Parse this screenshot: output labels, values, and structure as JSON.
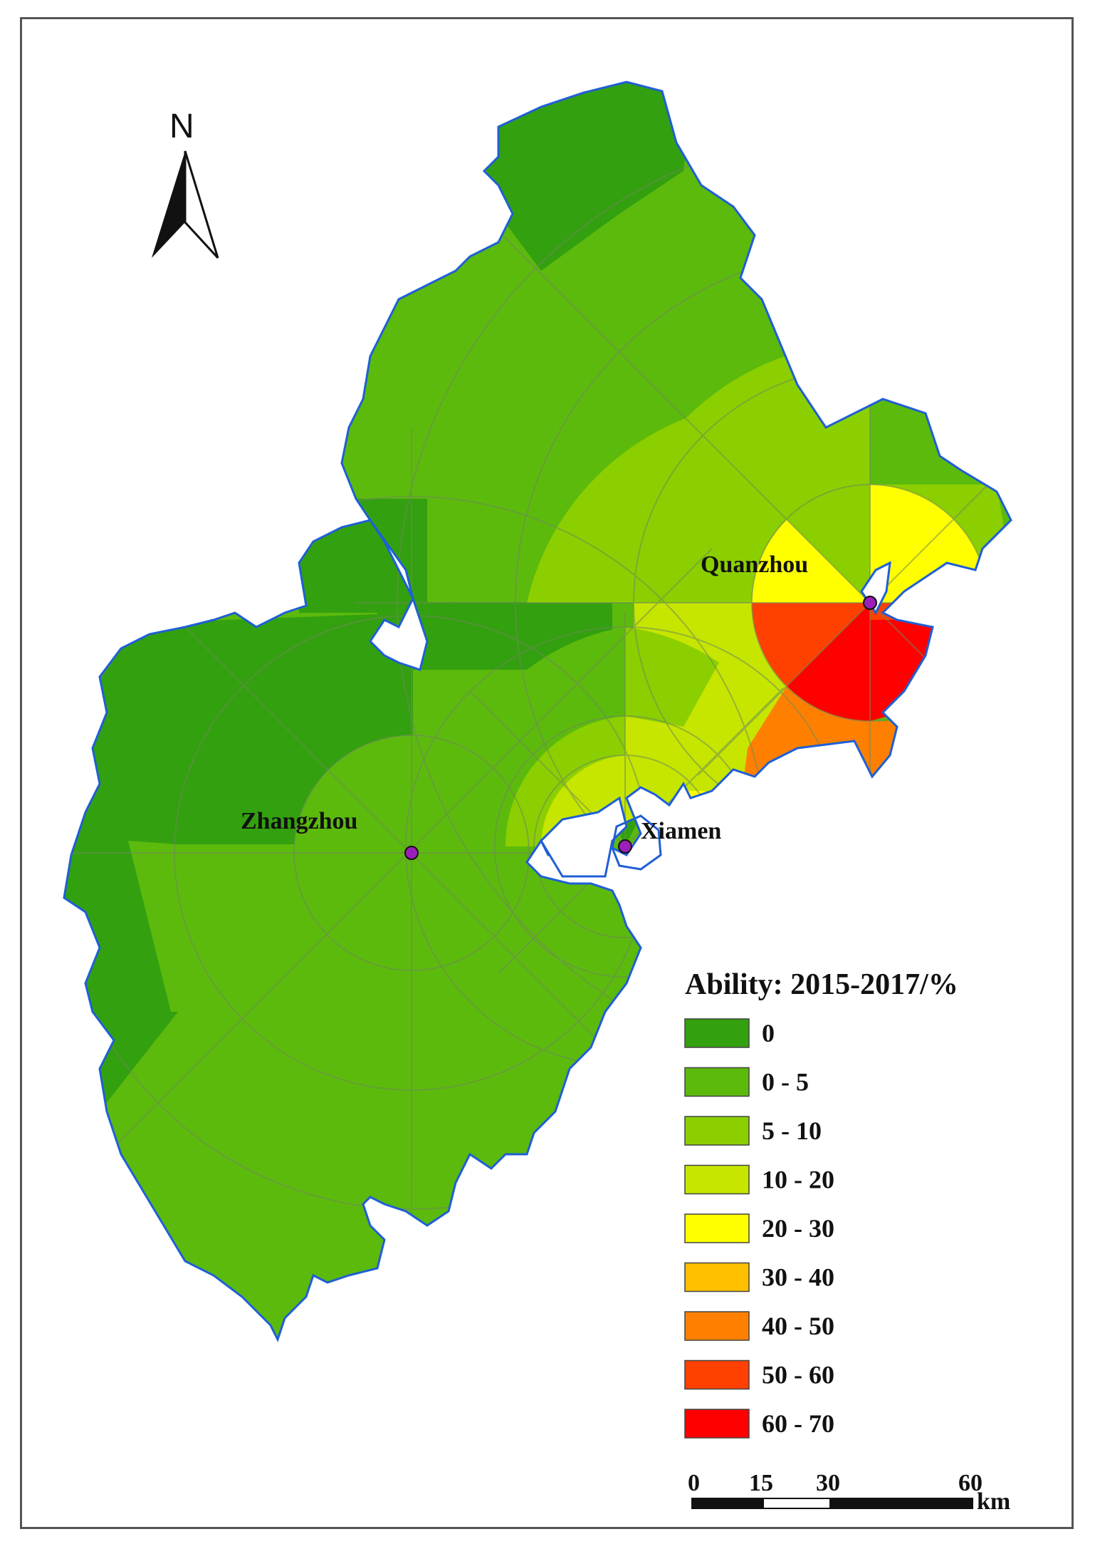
{
  "map": {
    "north_label": "N",
    "cities": [
      {
        "name": "Quanzhou"
      },
      {
        "name": "Zhangzhou"
      },
      {
        "name": "Xiamen"
      }
    ],
    "city_marker_color": "#9b1fb8",
    "coast_color": "#1f5fd6",
    "ring_line_color": "#6e8a5a"
  },
  "legend": {
    "title": "Ability: 2015-2017/%",
    "classes": [
      {
        "label": "0",
        "color": "#33a00f"
      },
      {
        "label": "0 - 5",
        "color": "#5cba0d"
      },
      {
        "label": "5 - 10",
        "color": "#8ccf00"
      },
      {
        "label": "10 - 20",
        "color": "#c6e600"
      },
      {
        "label": "20 - 30",
        "color": "#ffff00"
      },
      {
        "label": "30 - 40",
        "color": "#ffc000"
      },
      {
        "label": "40 - 50",
        "color": "#ff8000"
      },
      {
        "label": "50 - 60",
        "color": "#ff4000"
      },
      {
        "label": "60 - 70",
        "color": "#ff0000"
      }
    ]
  },
  "scale_bar": {
    "ticks": [
      "0",
      "15",
      "30",
      "60"
    ],
    "unit": "km"
  }
}
